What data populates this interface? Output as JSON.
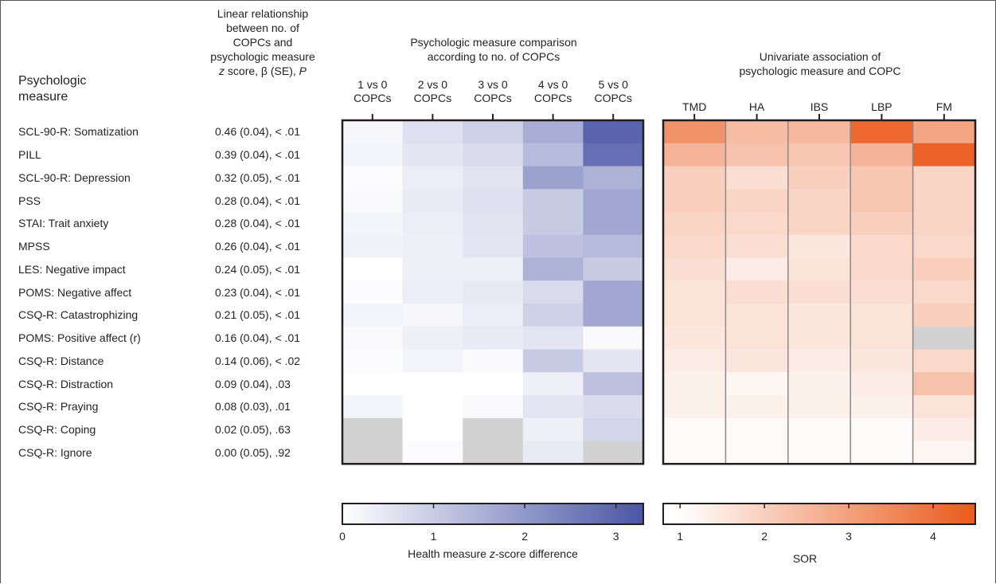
{
  "headers": {
    "measure": "Psychologic\nmeasure",
    "linear_line1": "Linear relationship",
    "linear_line2": "between no. of",
    "linear_line3": "COPCs and",
    "linear_line4": "psychologic measure",
    "linear_line5_z": "z",
    "linear_line5_rest": " score, β (SE), ",
    "linear_line5_p": "P",
    "comparison": "Psychologic measure comparison\naccording to no. of COPCs",
    "univariate": "Univariate association of\npsychologic measure and COPC"
  },
  "colors": {
    "blue_max": "#4a55a6",
    "orange_max": "#ea5a1c",
    "missing_gray": "#d2d2d2",
    "border": "#231f20",
    "divider": "#8a8a8a"
  },
  "chart_data": [
    {
      "type": "heatmap",
      "title": "Psychologic measure comparison according to no. of COPCs",
      "columns": [
        "1 vs 0\nCOPCs",
        "2 vs 0\nCOPCs",
        "3 vs 0\nCOPCs",
        "4 vs 0\nCOPCs",
        "5 vs 0\nCOPCs"
      ],
      "rows": [
        "SCL-90-R: Somatization",
        "PILL",
        "SCL-90-R: Depression",
        "PSS",
        "STAI: Trait anxiety",
        "MPSS",
        "LES: Negative impact",
        "POMS: Negative affect",
        "CSQ-R: Catastrophizing",
        "POMS: Positive affect (r)",
        "CSQ-R: Distance",
        "CSQ-R: Distraction",
        "CSQ-R: Praying",
        "CSQ-R: Coping",
        "CSQ-R: Ignore"
      ],
      "values": [
        [
          0.15,
          0.6,
          0.9,
          1.6,
          3.0
        ],
        [
          0.2,
          0.5,
          0.7,
          1.3,
          2.8
        ],
        [
          0.05,
          0.35,
          0.55,
          1.8,
          1.5
        ],
        [
          0.1,
          0.4,
          0.6,
          1.0,
          1.7
        ],
        [
          0.2,
          0.35,
          0.55,
          1.0,
          1.7
        ],
        [
          0.25,
          0.3,
          0.5,
          1.2,
          1.3
        ],
        [
          0.0,
          0.3,
          0.3,
          1.5,
          1.0
        ],
        [
          0.05,
          0.35,
          0.45,
          0.7,
          1.7
        ],
        [
          0.2,
          0.15,
          0.35,
          0.9,
          1.7
        ],
        [
          0.1,
          0.3,
          0.4,
          0.5,
          0.1
        ],
        [
          0.05,
          0.2,
          0.1,
          1.0,
          0.5
        ],
        [
          0.0,
          0.0,
          0.0,
          0.3,
          1.2
        ],
        [
          0.2,
          0.0,
          0.1,
          0.5,
          0.7
        ],
        [
          null,
          0.0,
          null,
          0.3,
          0.8
        ],
        [
          null,
          0.05,
          null,
          0.4,
          null
        ]
      ],
      "colorbar": {
        "min": 0,
        "max": 3.3,
        "ticks": [
          0,
          1,
          2,
          3
        ],
        "label_prefix": "Health measure ",
        "label_italic": "z",
        "label_suffix": "-score difference"
      }
    },
    {
      "type": "heatmap",
      "title": "Univariate association of psychologic measure and COPC",
      "columns": [
        "TMD",
        "HA",
        "IBS",
        "LBP",
        "FM"
      ],
      "rows": [
        "SCL-90-R: Somatization",
        "PILL",
        "SCL-90-R: Depression",
        "PSS",
        "STAI: Trait anxiety",
        "MPSS",
        "LES: Negative impact",
        "POMS: Negative affect",
        "CSQ-R: Catastrophizing",
        "POMS: Positive affect (r)",
        "CSQ-R: Distance",
        "CSQ-R: Distraction",
        "CSQ-R: Praying",
        "CSQ-R: Coping",
        "CSQ-R: Ignore"
      ],
      "values": [
        [
          3.3,
          2.4,
          2.5,
          4.2,
          2.9
        ],
        [
          2.6,
          2.3,
          2.2,
          2.6,
          4.3
        ],
        [
          2.0,
          1.7,
          2.0,
          2.2,
          1.9
        ],
        [
          2.0,
          1.9,
          1.9,
          2.2,
          1.9
        ],
        [
          1.9,
          1.8,
          1.9,
          2.0,
          1.9
        ],
        [
          1.8,
          1.7,
          1.5,
          1.8,
          1.8
        ],
        [
          1.7,
          1.4,
          1.6,
          1.8,
          2.0
        ],
        [
          1.6,
          1.7,
          1.7,
          1.7,
          1.8
        ],
        [
          1.6,
          1.6,
          1.5,
          1.6,
          2.0
        ],
        [
          1.5,
          1.6,
          1.5,
          1.6,
          null
        ],
        [
          1.4,
          1.5,
          1.4,
          1.5,
          1.8
        ],
        [
          1.3,
          1.2,
          1.3,
          1.4,
          2.3
        ],
        [
          1.3,
          1.3,
          1.3,
          1.3,
          1.6
        ],
        [
          1.1,
          1.1,
          1.1,
          1.1,
          1.4
        ],
        [
          1.1,
          1.1,
          1.1,
          1.1,
          1.2
        ]
      ],
      "colorbar": {
        "min": 0.8,
        "max": 4.5,
        "ticks": [
          1,
          2,
          3,
          4
        ],
        "label": "SOR"
      }
    }
  ],
  "linear_stats": [
    "0.46 (0.04), < .01",
    "0.39 (0.04), < .01",
    "0.32 (0.05), < .01",
    "0.28 (0.04), < .01",
    "0.28 (0.04), < .01",
    "0.26 (0.04), < .01",
    "0.24 (0.05), < .01",
    "0.23 (0.04), < .01",
    "0.21 (0.05), < .01",
    "0.16 (0.04), < .01",
    "0.14 (0.06), < .02",
    "0.09 (0.04), .03",
    "0.08 (0.03), .01",
    "0.02 (0.05), .63",
    "0.00 (0.05), .92"
  ]
}
